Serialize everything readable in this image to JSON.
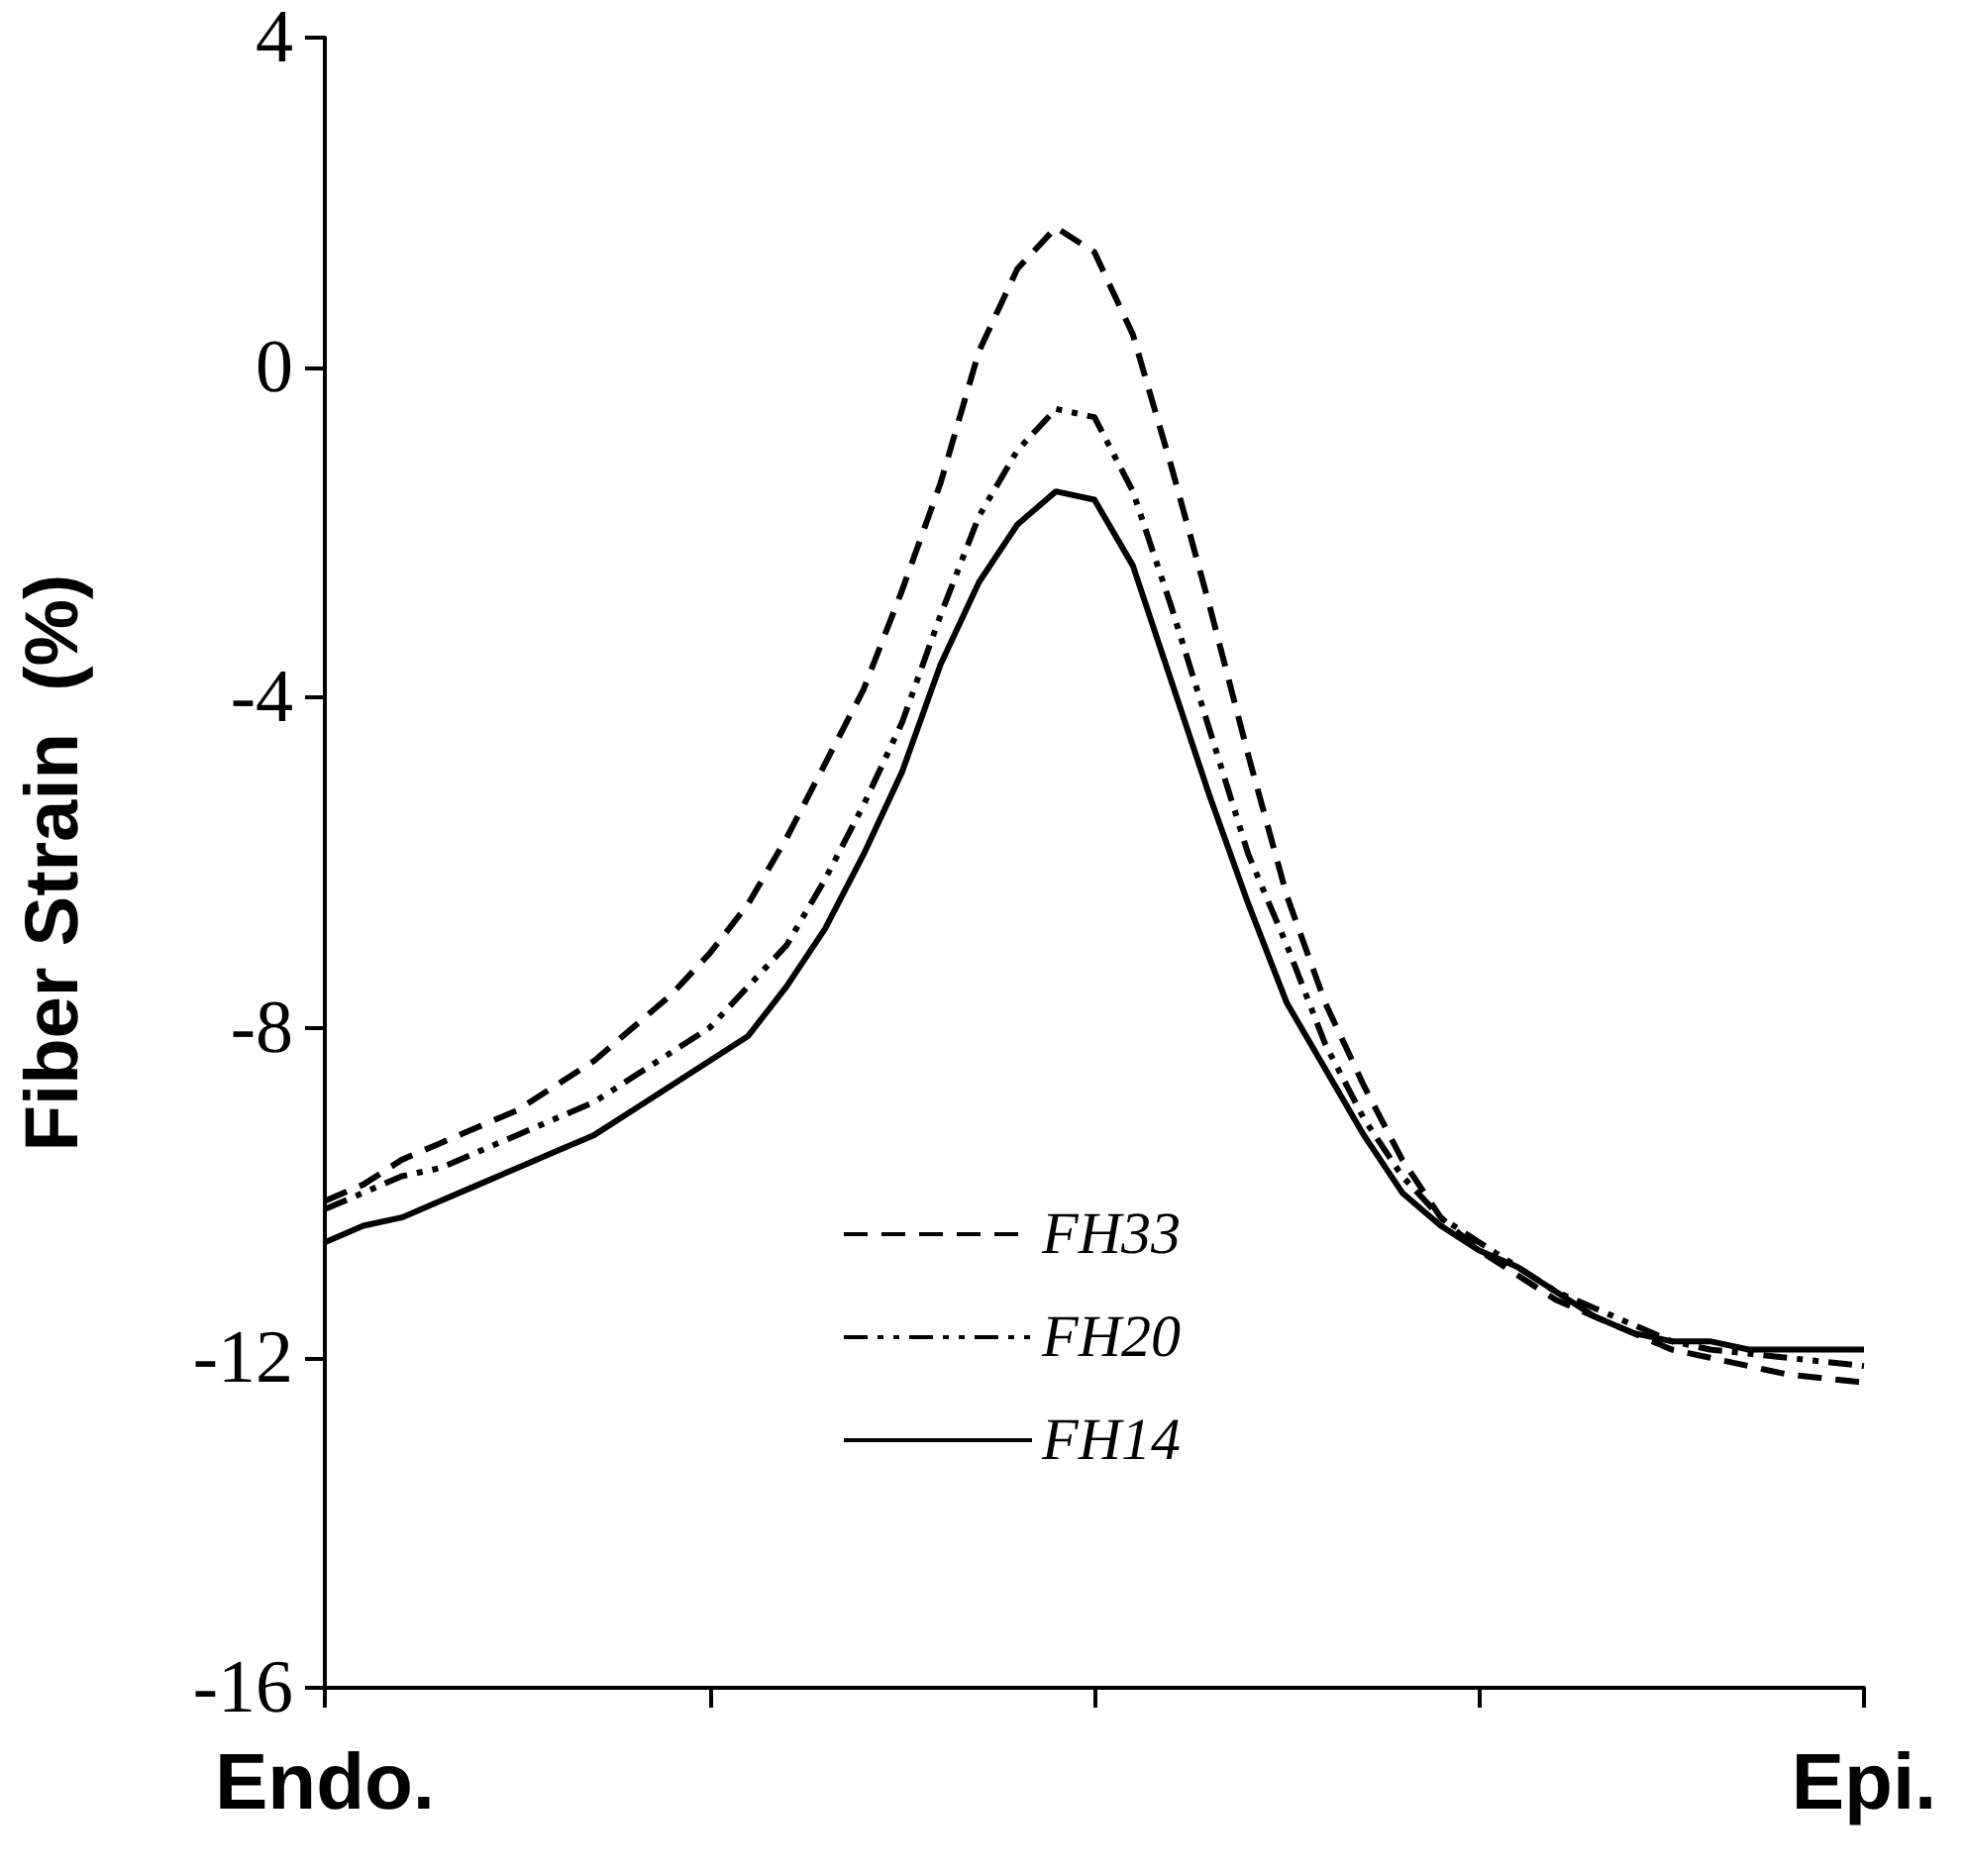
{
  "chart_data": {
    "type": "line",
    "ylabel": "Fiber Strain  (%)",
    "categories": [
      "Endo.",
      null,
      null,
      null,
      null,
      null,
      null,
      null,
      null,
      null,
      null,
      null,
      null,
      null,
      null,
      null,
      null,
      null,
      null,
      null,
      null,
      null,
      null,
      null,
      null,
      null,
      null,
      null,
      null,
      null,
      null,
      null,
      null,
      null,
      null,
      null,
      null,
      null,
      null,
      null,
      "Epi."
    ],
    "ylim": [
      -16,
      4
    ],
    "yticks": [
      -16,
      -12,
      -8,
      -4,
      0,
      4
    ],
    "grid": false,
    "legend": "bottom",
    "marker": "none",
    "series": [
      {
        "name": "FH33",
        "color": "#000000",
        "line_style": "dashed",
        "values": [
          -10.1,
          -9.9,
          -9.6,
          -9.4,
          -9.2,
          -9.0,
          -8.7,
          -8.4,
          -8.0,
          -7.6,
          -7.1,
          -6.5,
          -5.7,
          -4.8,
          -3.9,
          -2.7,
          -1.4,
          0.2,
          1.2,
          1.7,
          1.4,
          0.4,
          -1.2,
          -2.9,
          -4.7,
          -6.4,
          -7.7,
          -8.7,
          -9.6,
          -10.3,
          -10.7,
          -11.0,
          -11.3,
          -11.5,
          -11.7,
          -11.9,
          -12.0,
          -12.1,
          -12.2,
          -12.25,
          -12.3
        ]
      },
      {
        "name": "FH20",
        "color": "#000000",
        "line_style": "dashdot",
        "values": [
          -10.2,
          -10.0,
          -9.8,
          -9.7,
          -9.5,
          -9.3,
          -9.1,
          -8.9,
          -8.6,
          -8.3,
          -8.0,
          -7.5,
          -7.0,
          -6.2,
          -5.3,
          -4.3,
          -3.0,
          -1.8,
          -1.0,
          -0.5,
          -0.6,
          -1.5,
          -2.9,
          -4.4,
          -5.9,
          -7.0,
          -8.2,
          -9.1,
          -9.8,
          -10.3,
          -10.6,
          -10.9,
          -11.2,
          -11.4,
          -11.6,
          -11.8,
          -11.9,
          -11.95,
          -12.0,
          -12.05,
          -12.1
        ]
      },
      {
        "name": "FH14",
        "color": "#000000",
        "line_style": "solid",
        "values": [
          -10.6,
          -10.4,
          -10.3,
          -10.1,
          -9.9,
          -9.7,
          -9.5,
          -9.3,
          -9.0,
          -8.7,
          -8.4,
          -8.1,
          -7.5,
          -6.8,
          -5.9,
          -4.9,
          -3.6,
          -2.6,
          -1.9,
          -1.5,
          -1.6,
          -2.4,
          -3.8,
          -5.2,
          -6.5,
          -7.7,
          -8.5,
          -9.3,
          -10.0,
          -10.4,
          -10.7,
          -10.9,
          -11.2,
          -11.5,
          -11.7,
          -11.8,
          -11.8,
          -11.9,
          -11.9,
          -11.9,
          -11.9
        ]
      }
    ]
  }
}
